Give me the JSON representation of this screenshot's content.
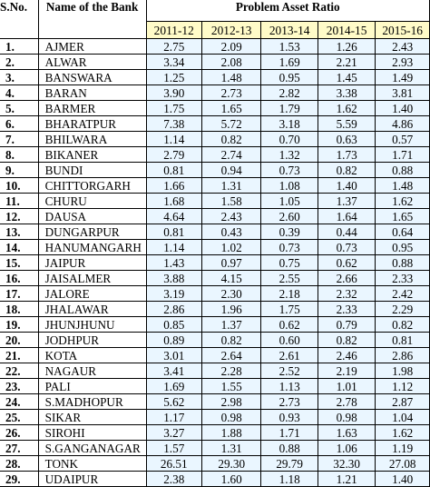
{
  "header": {
    "sno_label": "S.No.",
    "bank_label": "Name of the Bank",
    "group_label": "Problem Asset Ratio",
    "years": [
      "2011-12",
      "2012-13",
      "2013-14",
      "2014-15",
      "2015-16"
    ]
  },
  "rows": [
    {
      "sno": "1.",
      "name": "AJMER",
      "values": [
        "2.75",
        "2.09",
        "1.53",
        "1.26",
        "2.43"
      ]
    },
    {
      "sno": "2.",
      "name": "ALWAR",
      "values": [
        "3.34",
        "2.08",
        "1.69",
        "2.21",
        "2.93"
      ]
    },
    {
      "sno": "3.",
      "name": "BANSWARA",
      "values": [
        "1.25",
        "1.48",
        "0.95",
        "1.45",
        "1.49"
      ]
    },
    {
      "sno": "4.",
      "name": "BARAN",
      "values": [
        "3.90",
        "2.73",
        "2.82",
        "3.38",
        "3.81"
      ]
    },
    {
      "sno": "5.",
      "name": "BARMER",
      "values": [
        "1.75",
        "1.65",
        "1.79",
        "1.62",
        "1.40"
      ]
    },
    {
      "sno": "6.",
      "name": "BHARATPUR",
      "values": [
        "7.38",
        "5.72",
        "3.18",
        "5.59",
        "4.86"
      ]
    },
    {
      "sno": "7.",
      "name": "BHILWARA",
      "values": [
        "1.14",
        "0.82",
        "0.70",
        "0.63",
        "0.57"
      ]
    },
    {
      "sno": "8.",
      "name": "BIKANER",
      "values": [
        "2.79",
        "2.74",
        "1.32",
        "1.73",
        "1.71"
      ]
    },
    {
      "sno": "9.",
      "name": "BUNDI",
      "values": [
        "0.81",
        "0.94",
        "0.73",
        "0.82",
        "0.88"
      ]
    },
    {
      "sno": "10.",
      "name": "CHITTORGARH",
      "values": [
        "1.66",
        "1.31",
        "1.08",
        "1.40",
        "1.48"
      ]
    },
    {
      "sno": "11.",
      "name": "CHURU",
      "values": [
        "1.68",
        "1.58",
        "1.05",
        "1.37",
        "1.62"
      ]
    },
    {
      "sno": "12.",
      "name": "DAUSA",
      "values": [
        "4.64",
        "2.43",
        "2.60",
        "1.64",
        "1.65"
      ]
    },
    {
      "sno": "13.",
      "name": "DUNGARPUR",
      "values": [
        "0.81",
        "0.43",
        "0.39",
        "0.44",
        "0.64"
      ]
    },
    {
      "sno": "14.",
      "name": "HANUMANGARH",
      "values": [
        "1.14",
        "1.02",
        "0.73",
        "0.73",
        "0.95"
      ]
    },
    {
      "sno": "15.",
      "name": "JAIPUR",
      "values": [
        "1.43",
        "0.97",
        "0.75",
        "0.62",
        "0.88"
      ]
    },
    {
      "sno": "16.",
      "name": "JAISALMER",
      "values": [
        "3.88",
        "4.15",
        "2.55",
        "2.66",
        "2.33"
      ]
    },
    {
      "sno": "17.",
      "name": "JALORE",
      "values": [
        "3.19",
        "2.30",
        "2.18",
        "2.32",
        "2.42"
      ]
    },
    {
      "sno": "18.",
      "name": "JHALAWAR",
      "values": [
        "2.86",
        "1.96",
        "1.75",
        "2.33",
        "2.29"
      ]
    },
    {
      "sno": "19.",
      "name": "JHUNJHUNU",
      "values": [
        "0.85",
        "1.37",
        "0.62",
        "0.79",
        "0.82"
      ]
    },
    {
      "sno": "20.",
      "name": "JODHPUR",
      "values": [
        "0.89",
        "0.82",
        "0.60",
        "0.82",
        "0.81"
      ]
    },
    {
      "sno": "21.",
      "name": "KOTA",
      "values": [
        "3.01",
        "2.64",
        "2.61",
        "2.46",
        "2.86"
      ]
    },
    {
      "sno": "22.",
      "name": "NAGAUR",
      "values": [
        "3.41",
        "2.28",
        "2.52",
        "2.19",
        "1.98"
      ]
    },
    {
      "sno": "23.",
      "name": "PALI",
      "values": [
        "1.69",
        "1.55",
        "1.13",
        "1.01",
        "1.12"
      ]
    },
    {
      "sno": "24.",
      "name": "S.MADHOPUR",
      "values": [
        "5.62",
        "2.98",
        "2.73",
        "2.78",
        "2.87"
      ]
    },
    {
      "sno": "25.",
      "name": "SIKAR",
      "values": [
        "1.17",
        "0.98",
        "0.93",
        "0.98",
        "1.04"
      ]
    },
    {
      "sno": "26.",
      "name": "SIROHI",
      "values": [
        "3.27",
        "1.88",
        "1.71",
        "1.63",
        "1.62"
      ]
    },
    {
      "sno": "27.",
      "name": "S.GANGANAGAR",
      "values": [
        "1.57",
        "1.31",
        "0.88",
        "1.06",
        "1.19"
      ]
    },
    {
      "sno": "28.",
      "name": "TONK",
      "values": [
        "26.51",
        "29.30",
        "29.79",
        "32.30",
        "27.08"
      ]
    },
    {
      "sno": "29.",
      "name": "UDAIPUR",
      "values": [
        "2.38",
        "1.60",
        "1.18",
        "1.21",
        "1.40"
      ]
    }
  ]
}
